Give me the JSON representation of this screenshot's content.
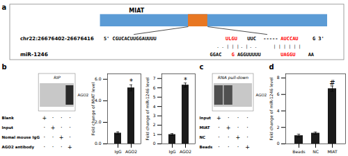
{
  "chart_data": [
    {
      "type": "diagram",
      "title": "a",
      "colors": [
        "#888888",
        "#5b9bd5",
        "#e87722"
      ],
      "annotations": [
        [
          {
            "text": "MIAT"
          }
        ],
        [
          {
            "text": "chr22:26676402-26676416"
          }
        ],
        [
          {
            "text": "5' CGUCACUUGGAUUUU",
            "color": "black"
          },
          {
            "text": "ULGU",
            "color": "red"
          },
          {
            "text": "UUC",
            "color": "black"
          },
          {
            "text": "-----",
            "color": "black"
          },
          {
            "text": "AUCCAU",
            "color": "red"
          },
          {
            "text": "G 3'",
            "color": "black"
          }
        ],
        [
          {
            "text": ". ."
          },
          {
            "text": "| | |"
          },
          {
            "text": ". |"
          },
          {
            "text": ". ."
          },
          {
            "text": "| | | | | |"
          }
        ],
        [
          {
            "text": "miR-1246"
          }
        ],
        [
          {
            "text": "GGAC",
            "color": "black"
          },
          {
            "text": "G",
            "color": "red"
          },
          {
            "text": "AGGUUUUU",
            "color": "black"
          },
          {
            "text": "UAGGU",
            "color": "red"
          },
          {
            "text": "AA",
            "color": "black"
          }
        ]
      ]
    },
    {
      "type": "blot",
      "title": "b",
      "colors": [
        "#888888",
        "#c8c8c8",
        "#2a2a2a"
      ],
      "annotations": [
        {
          "text": "RIP"
        },
        {
          "text": "AGO2"
        }
      ],
      "table": [
        {
          "label": "Blank",
          "cells": [
            "+",
            "·",
            "·",
            "·"
          ]
        },
        {
          "label": "Input",
          "cells": [
            "·",
            "+",
            "·",
            "·"
          ]
        },
        {
          "label": "Nomal mouse IgG",
          "cells": [
            "·",
            "·",
            "+",
            "·"
          ]
        },
        {
          "label": "AGO2 antibody",
          "cells": [
            "·",
            "·",
            "·",
            "+"
          ]
        }
      ],
      "bands": [
        "AGO2 antibody"
      ]
    },
    {
      "type": "bar",
      "categories": [
        "IgG",
        "AGO2"
      ],
      "values": [
        1.0,
        5.2
      ],
      "errors": [
        0.12,
        0.28
      ],
      "ylabel": "Fold change of MIAT level",
      "color": "#1a1a1a",
      "ylim": [
        0,
        6.5
      ],
      "yticks": [
        0,
        2,
        4,
        6
      ],
      "annotations": [
        {
          "text": "*",
          "category": "AGO2"
        }
      ]
    },
    {
      "type": "bar",
      "categories": [
        "IgG",
        "AGO2"
      ],
      "values": [
        1.0,
        6.3
      ],
      "errors": [
        0.1,
        0.22
      ],
      "ylabel": "Fold change of miR-1246 level",
      "color": "#1a1a1a",
      "ylim": [
        0,
        7.5
      ],
      "yticks": [
        0,
        1,
        2,
        3,
        4,
        5,
        6,
        7
      ],
      "annotations": [
        {
          "text": "*",
          "category": "AGO2"
        }
      ]
    },
    {
      "type": "blot",
      "title": "c",
      "colors": [
        "#888888",
        "#c8c8c8",
        "#505050"
      ],
      "annotations": [
        {
          "text": "RNA pull-down"
        },
        {
          "text": "AGO2"
        }
      ],
      "table": [
        {
          "label": "Input",
          "cells": [
            "+",
            "·",
            "·",
            "·"
          ]
        },
        {
          "label": "MIAT",
          "cells": [
            "·",
            "+",
            "·",
            "·"
          ]
        },
        {
          "label": "NC",
          "cells": [
            "·",
            "·",
            "+",
            "·"
          ]
        },
        {
          "label": "Beads",
          "cells": [
            "·",
            "·",
            "·",
            "+"
          ]
        }
      ],
      "bands": [
        "Input",
        "MIAT"
      ]
    },
    {
      "type": "bar",
      "title": "d",
      "categories": [
        "Beads",
        "NC",
        "MIAT"
      ],
      "values": [
        1.0,
        1.3,
        6.7
      ],
      "errors": [
        0.18,
        0.14,
        0.32
      ],
      "ylabel": "Fold change of miR-1246 level",
      "color": "#1a1a1a",
      "ylim": [
        0,
        8.5
      ],
      "yticks": [
        0,
        2,
        4,
        6,
        8
      ],
      "annotations": [
        {
          "text": "#",
          "category": "MIAT"
        }
      ]
    }
  ]
}
